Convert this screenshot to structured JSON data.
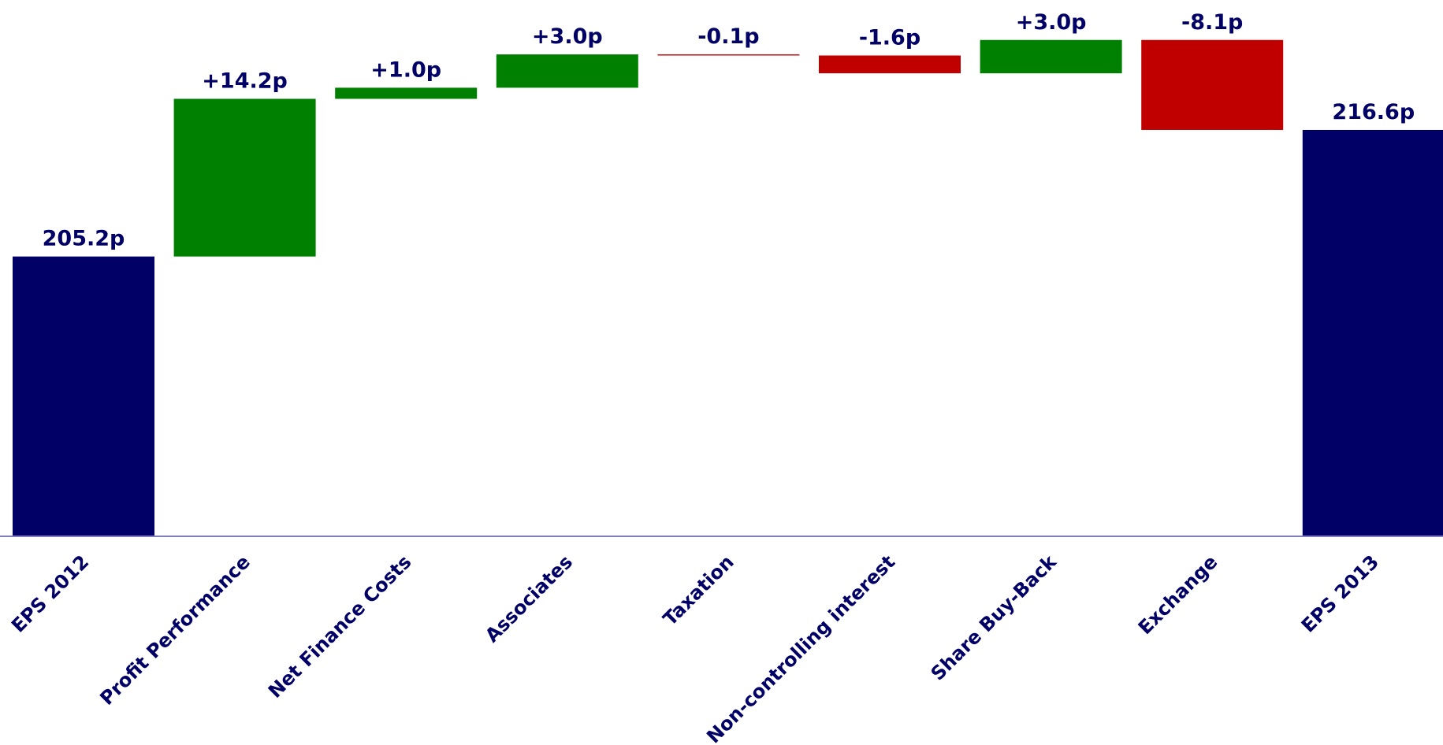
{
  "chart_data": {
    "type": "waterfall",
    "categories": [
      "EPS 2012",
      "Profit Performance",
      "Net Finance Costs",
      "Associates",
      "Taxation",
      "Non-controlling interest",
      "Share Buy-Back",
      "Exchange",
      "EPS 2013"
    ],
    "values": [
      205.2,
      14.2,
      1.0,
      3.0,
      -0.1,
      -1.6,
      3.0,
      -8.1,
      216.6
    ],
    "value_labels": [
      "205.2p",
      "+14.2p",
      "+1.0p",
      "+3.0p",
      "-0.1p",
      "-1.6p",
      "+3.0p",
      "-8.1p",
      "216.6p"
    ],
    "ylim": [
      180,
      228.3
    ],
    "total_color": "#000066",
    "increase_color": "#008000",
    "decrease_color": "#c00000"
  }
}
